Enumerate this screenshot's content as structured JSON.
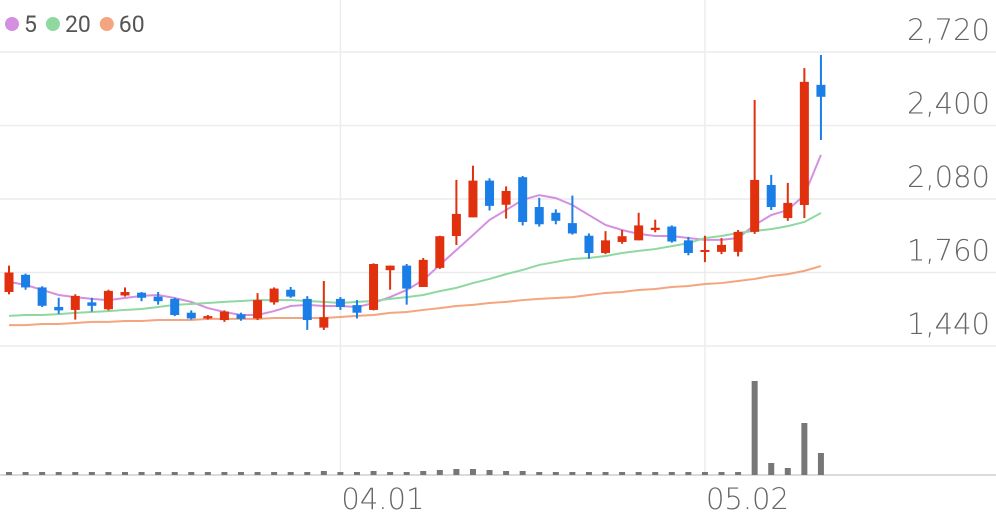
{
  "chart_data": {
    "type": "candlestick",
    "categories": [
      null,
      null,
      null,
      null,
      null,
      null,
      null,
      null,
      null,
      null,
      null,
      null,
      null,
      null,
      null,
      null,
      null,
      null,
      null,
      null,
      "04.01",
      null,
      null,
      null,
      null,
      null,
      null,
      null,
      null,
      null,
      null,
      null,
      null,
      null,
      null,
      null,
      null,
      null,
      null,
      null,
      null,
      null,
      "05.02",
      null,
      null,
      null,
      null,
      null,
      null,
      null
    ],
    "open": [
      1675,
      1750,
      1695,
      1610,
      1597,
      1630,
      1600,
      1660,
      1672,
      1655,
      1645,
      1585,
      1560,
      1553,
      1578,
      1560,
      1630,
      1685,
      1645,
      1520,
      1645,
      1618,
      1597,
      1770,
      1790,
      1697,
      1780,
      1919,
      2000,
      2160,
      2055,
      2175,
      2045,
      2020,
      1975,
      1920,
      1845,
      1893,
      1900,
      1945,
      1960,
      1900,
      1850,
      1850,
      1850,
      1937,
      2141,
      1997,
      2054,
      2577
    ],
    "high": [
      1790,
      1755,
      1700,
      1650,
      1665,
      1650,
      1685,
      1695,
      1675,
      1675,
      1650,
      1595,
      1575,
      1595,
      1585,
      1670,
      1695,
      1697,
      1657,
      1723,
      1653,
      1640,
      1800,
      1790,
      1797,
      1823,
      1920,
      2163,
      2225,
      2170,
      2135,
      2180,
      2085,
      2035,
      2095,
      1930,
      1940,
      1945,
      2020,
      1990,
      1965,
      1915,
      1920,
      1910,
      1945,
      2511,
      2185,
      2150,
      2650,
      2707
    ],
    "low": [
      1665,
      1685,
      1610,
      1580,
      1555,
      1590,
      1595,
      1655,
      1635,
      1620,
      1570,
      1555,
      1555,
      1545,
      1550,
      1553,
      1620,
      1650,
      1510,
      1510,
      1597,
      1560,
      1595,
      1685,
      1620,
      1697,
      1775,
      1880,
      2000,
      2030,
      1995,
      1965,
      1960,
      1970,
      1925,
      1820,
      1840,
      1885,
      1900,
      1935,
      1890,
      1835,
      1805,
      1840,
      1830,
      1928,
      2032,
      1985,
      1997,
      2337
    ],
    "close": [
      1760,
      1695,
      1615,
      1595,
      1658,
      1615,
      1680,
      1675,
      1650,
      1635,
      1575,
      1560,
      1570,
      1590,
      1558,
      1640,
      1690,
      1655,
      1553,
      1565,
      1610,
      1585,
      1797,
      1790,
      1690,
      1815,
      1918,
      2015,
      2160,
      2050,
      2115,
      1980,
      1970,
      1985,
      1930,
      1845,
      1900,
      1918,
      1965,
      1955,
      1895,
      1845,
      1858,
      1880,
      1937,
      2163,
      2045,
      2063,
      2590,
      2525
    ],
    "volume": [
      3,
      3,
      3,
      3,
      3,
      3,
      3,
      3,
      3,
      3,
      3,
      3,
      3,
      3,
      3,
      3,
      3,
      3,
      3,
      4,
      3,
      3,
      4,
      3,
      3,
      4,
      5,
      6,
      6,
      5,
      4,
      4,
      3,
      3,
      3,
      3,
      3,
      3,
      3,
      3,
      3,
      3,
      3,
      3,
      3,
      94,
      12,
      7,
      52,
      22
    ],
    "volume_ylim": [
      0,
      125
    ],
    "up_color": "#e0300e",
    "down_color": "#1a7ee6",
    "volume_color": "#777777",
    "moving_averages": [
      {
        "name": "5",
        "color": "#d58fe0",
        "values": [
          1719,
          1706,
          1684,
          1662,
          1653,
          1645,
          1640,
          1649,
          1658,
          1662,
          1649,
          1632,
          1605,
          1588,
          1575,
          1575,
          1592,
          1614,
          1619,
          1614,
          1614,
          1610,
          1627,
          1653,
          1684,
          1727,
          1793,
          1858,
          1923,
          1989,
          2032,
          2076,
          2097,
          2084,
          2054,
          2010,
          1967,
          1945,
          1928,
          1919,
          1919,
          1910,
          1902,
          1902,
          1910,
          1967,
          2010,
          2032,
          2097,
          2272
        ]
      },
      {
        "name": "20",
        "color": "#8fd8a0",
        "values": [
          1571,
          1575,
          1575,
          1579,
          1584,
          1588,
          1592,
          1597,
          1601,
          1610,
          1619,
          1623,
          1627,
          1632,
          1636,
          1640,
          1640,
          1640,
          1636,
          1632,
          1627,
          1632,
          1636,
          1645,
          1653,
          1662,
          1679,
          1693,
          1714,
          1732,
          1753,
          1771,
          1793,
          1806,
          1819,
          1823,
          1832,
          1845,
          1854,
          1862,
          1875,
          1888,
          1910,
          1919,
          1932,
          1941,
          1949,
          1962,
          1980,
          2019
        ]
      },
      {
        "name": "60",
        "color": "#f4a57f",
        "values": [
          1531,
          1531,
          1536,
          1536,
          1540,
          1545,
          1545,
          1549,
          1549,
          1553,
          1553,
          1553,
          1558,
          1558,
          1558,
          1558,
          1562,
          1562,
          1562,
          1562,
          1566,
          1571,
          1575,
          1584,
          1588,
          1597,
          1605,
          1614,
          1619,
          1627,
          1632,
          1640,
          1645,
          1649,
          1653,
          1662,
          1671,
          1675,
          1684,
          1688,
          1697,
          1701,
          1710,
          1714,
          1723,
          1732,
          1745,
          1753,
          1767,
          1788
        ]
      }
    ],
    "ylim": [
      1440,
      2720
    ],
    "yticks": [
      {
        "value": 1440,
        "label": "1,440"
      },
      {
        "value": 1760,
        "label": "1,760"
      },
      {
        "value": 2080,
        "label": "2,080"
      },
      {
        "value": 2400,
        "label": "2,400"
      },
      {
        "value": 2720,
        "label": "2,720"
      }
    ],
    "grid": true
  }
}
